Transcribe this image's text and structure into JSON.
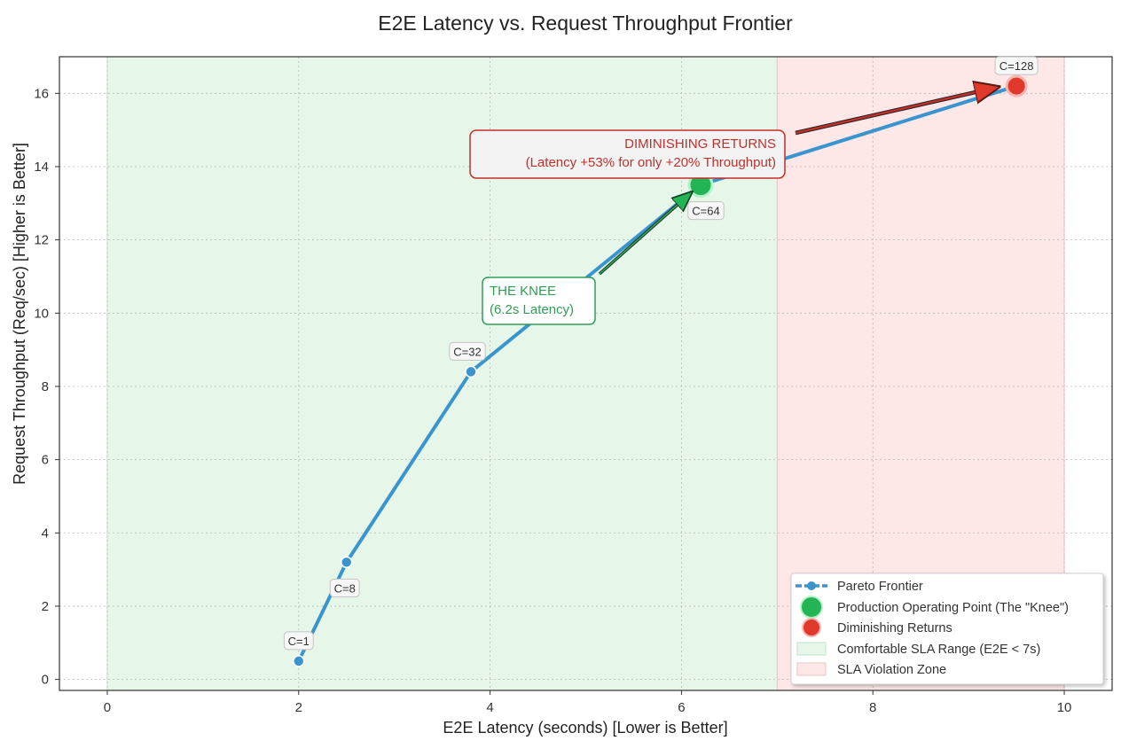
{
  "chart_data": {
    "type": "line",
    "title": "E2E Latency vs. Request Throughput Frontier",
    "xlabel": "E2E Latency (seconds) [Lower is Better]",
    "ylabel": "Request Throughput (Req/sec) [Higher is Better]",
    "xlim": [
      -0.5,
      10.5
    ],
    "ylim": [
      -0.3,
      17
    ],
    "x_ticks": [
      0,
      2,
      4,
      6,
      8,
      10
    ],
    "y_ticks": [
      0,
      2,
      4,
      6,
      8,
      10,
      12,
      14,
      16
    ],
    "grid": true,
    "legend_position": "bottom-right",
    "series": [
      {
        "name": "Pareto Frontier",
        "color": "#3a95cf",
        "points": [
          {
            "x": 2.0,
            "y": 0.5,
            "label": "C=1"
          },
          {
            "x": 2.5,
            "y": 3.2,
            "label": "C=8"
          },
          {
            "x": 3.8,
            "y": 8.4,
            "label": "C=32"
          },
          {
            "x": 6.2,
            "y": 13.5,
            "label": "C=64"
          },
          {
            "x": 9.5,
            "y": 16.2,
            "label": "C=128"
          }
        ]
      }
    ],
    "highlights": [
      {
        "name": "Production Operating Point (The \"Knee\")",
        "x": 6.2,
        "y": 13.5,
        "color": "#22b455"
      },
      {
        "name": "Diminishing Returns",
        "x": 9.5,
        "y": 16.2,
        "color": "#e0392b"
      }
    ],
    "regions": [
      {
        "name": "Comfortable SLA Range (E2E < 7s)",
        "x_range": [
          0.0,
          7.0
        ],
        "color": "#e6f7ea"
      },
      {
        "name": "SLA Violation Zone",
        "x_range": [
          7.0,
          10.0
        ],
        "color": "#fde7e7"
      }
    ],
    "annotations": [
      {
        "lines": [
          "THE KNEE",
          "(6.2s Latency)"
        ],
        "color": "#2e9e55",
        "target": [
          6.2,
          13.5
        ],
        "text_anchor": [
          5.1,
          10.5
        ]
      },
      {
        "lines": [
          "DIMINISHING RETURNS",
          "(Latency +53% for only +20% Throughput)"
        ],
        "color": "#c0302b",
        "target": [
          9.5,
          16.2
        ],
        "text_anchor": [
          7.2,
          14.9
        ]
      }
    ]
  }
}
